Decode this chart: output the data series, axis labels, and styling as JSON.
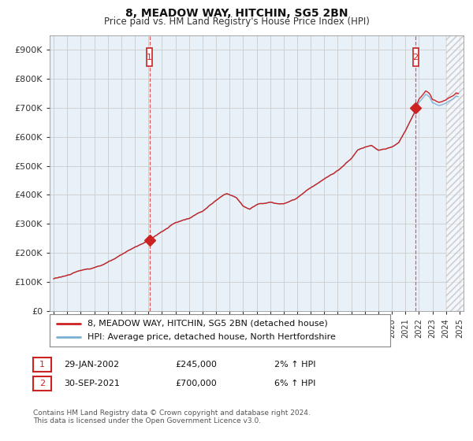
{
  "title": "8, MEADOW WAY, HITCHIN, SG5 2BN",
  "subtitle": "Price paid vs. HM Land Registry's House Price Index (HPI)",
  "ylabel_ticks": [
    "£0",
    "£100K",
    "£200K",
    "£300K",
    "£400K",
    "£500K",
    "£600K",
    "£700K",
    "£800K",
    "£900K"
  ],
  "ytick_values": [
    0,
    100000,
    200000,
    300000,
    400000,
    500000,
    600000,
    700000,
    800000,
    900000
  ],
  "ylim": [
    0,
    950000
  ],
  "xlim_start": 1994.7,
  "xlim_end": 2025.3,
  "hpi_color": "#7bafd4",
  "price_color": "#cc2222",
  "chart_bg": "#e8f0f8",
  "marker1_date": 2002.08,
  "marker1_price": 245000,
  "marker2_date": 2021.75,
  "marker2_price": 700000,
  "legend_line1": "8, MEADOW WAY, HITCHIN, SG5 2BN (detached house)",
  "legend_line2": "HPI: Average price, detached house, North Hertfordshire",
  "table_row1": [
    "1",
    "29-JAN-2002",
    "£245,000",
    "2% ↑ HPI"
  ],
  "table_row2": [
    "2",
    "30-SEP-2021",
    "£700,000",
    "6% ↑ HPI"
  ],
  "footnote": "Contains HM Land Registry data © Crown copyright and database right 2024.\nThis data is licensed under the Open Government Licence v3.0.",
  "bg_color": "#ffffff",
  "grid_color": "#cccccc",
  "vline_color": "#dd4444",
  "hatch_start": 2024.0
}
